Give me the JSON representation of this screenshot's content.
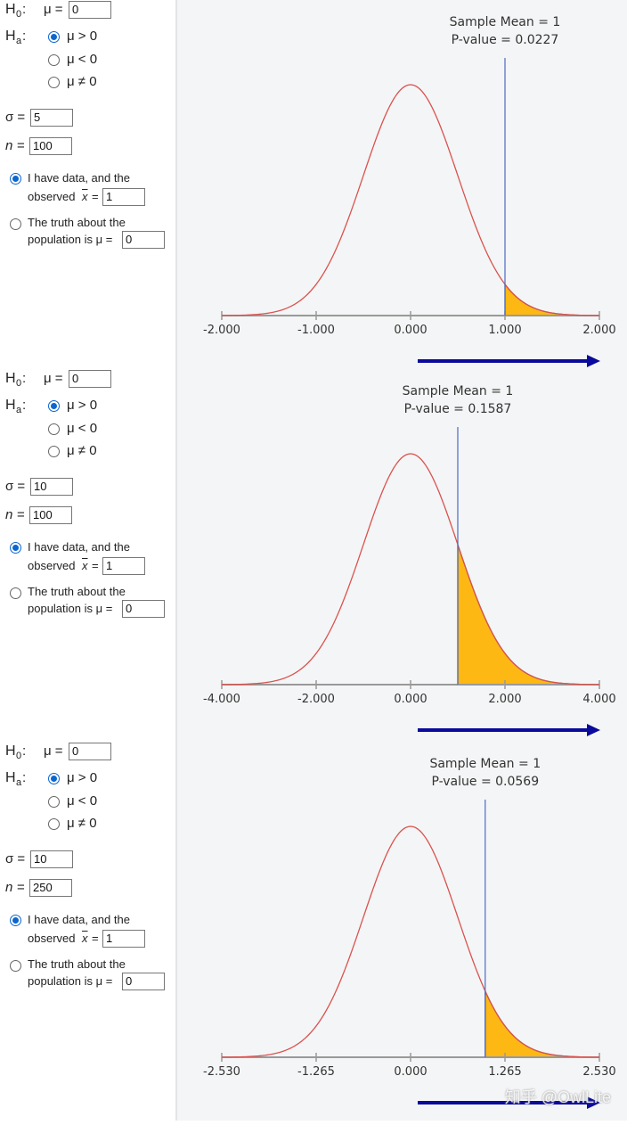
{
  "panels": [
    {
      "null": {
        "label": "H",
        "sub": "0",
        "colon": ":",
        "mu": "μ =",
        "value": 0
      },
      "alt": {
        "label": "H",
        "sub": "a",
        "colon": ":",
        "options": [
          "μ > 0",
          "μ < 0",
          "μ ≠ 0"
        ],
        "selected": 0
      },
      "sigma": {
        "label": "σ =",
        "value": 5
      },
      "n": {
        "label": "n",
        "eq": "=",
        "value": 100
      },
      "data_option": {
        "line1": "I have data, and the",
        "line2": "observed",
        "xbar": "x",
        "eq": "=",
        "value": 1,
        "selected": true
      },
      "truth_option": {
        "line1": "The truth about the",
        "line2": "population is μ =",
        "value": 0,
        "selected": false
      },
      "chart_data": {
        "type": "normal-tail",
        "title": "Sample Mean = 1",
        "subtitle": "P-value = 0.0227",
        "sample_mean": 1,
        "xlim": [
          -2,
          2
        ],
        "xticks": [
          {
            "value": -2,
            "label": "-2.000"
          },
          {
            "value": -1,
            "label": "-1.000"
          },
          {
            "value": 0,
            "label": "0.000"
          },
          {
            "value": 1,
            "label": "1.000"
          },
          {
            "value": 2,
            "label": "2.000"
          }
        ],
        "curve_color": "#d9534f",
        "fill_color": "#fdb813",
        "mean_line_color": "#4a6cc4"
      }
    },
    {
      "null": {
        "label": "H",
        "sub": "0",
        "colon": ":",
        "mu": "μ =",
        "value": 0
      },
      "alt": {
        "label": "H",
        "sub": "a",
        "colon": ":",
        "options": [
          "μ > 0",
          "μ < 0",
          "μ ≠ 0"
        ],
        "selected": 0
      },
      "sigma": {
        "label": "σ =",
        "value": 10
      },
      "n": {
        "label": "n",
        "eq": "=",
        "value": 100
      },
      "data_option": {
        "line1": "I have data, and the",
        "line2": "observed",
        "xbar": "x",
        "eq": "=",
        "value": 1,
        "selected": true
      },
      "truth_option": {
        "line1": "The truth about the",
        "line2": "population is μ =",
        "value": 0,
        "selected": false
      },
      "chart_data": {
        "type": "normal-tail",
        "title": "Sample Mean = 1",
        "subtitle": "P-value = 0.1587",
        "sample_mean": 1,
        "xlim": [
          -4,
          4
        ],
        "xticks": [
          {
            "value": -4,
            "label": "-4.000"
          },
          {
            "value": -2,
            "label": "-2.000"
          },
          {
            "value": 0,
            "label": "0.000"
          },
          {
            "value": 2,
            "label": "2.000"
          },
          {
            "value": 4,
            "label": "4.000"
          }
        ],
        "curve_color": "#d9534f",
        "fill_color": "#fdb813",
        "mean_line_color": "#4a6cc4"
      }
    },
    {
      "null": {
        "label": "H",
        "sub": "0",
        "colon": ":",
        "mu": "μ =",
        "value": 0
      },
      "alt": {
        "label": "H",
        "sub": "a",
        "colon": ":",
        "options": [
          "μ > 0",
          "μ < 0",
          "μ ≠ 0"
        ],
        "selected": 0
      },
      "sigma": {
        "label": "σ =",
        "value": 10
      },
      "n": {
        "label": "n",
        "eq": "=",
        "value": 250
      },
      "data_option": {
        "line1": "I have data, and the",
        "line2": "observed",
        "xbar": "x",
        "eq": "=",
        "value": 1,
        "selected": true
      },
      "truth_option": {
        "line1": "The truth about the",
        "line2": "population is μ =",
        "value": 0,
        "selected": false
      },
      "chart_data": {
        "type": "normal-tail",
        "title": "Sample Mean = 1",
        "subtitle": "P-value = 0.0569",
        "sample_mean": 1,
        "xlim": [
          -2.53,
          2.53
        ],
        "xticks": [
          {
            "value": -2.53,
            "label": "-2.530"
          },
          {
            "value": -1.265,
            "label": "-1.265"
          },
          {
            "value": 0,
            "label": "0.000"
          },
          {
            "value": 1.265,
            "label": "1.265"
          },
          {
            "value": 2.53,
            "label": "2.530"
          }
        ],
        "curve_color": "#d9534f",
        "fill_color": "#fdb813",
        "mean_line_color": "#4a6cc4"
      }
    }
  ],
  "watermark": "知乎 @OwlLite"
}
